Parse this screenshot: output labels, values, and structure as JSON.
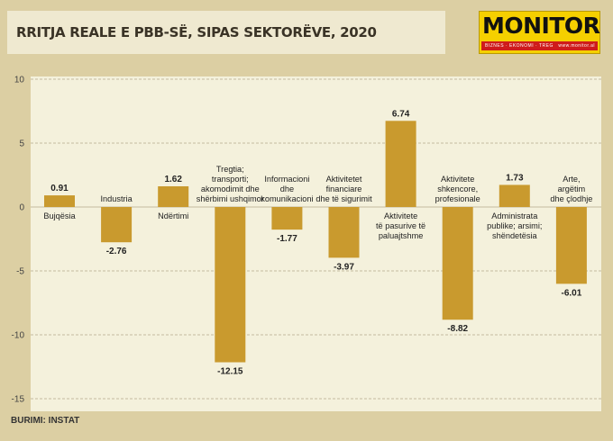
{
  "header": {
    "title": "RRITJA REALE E PBB-SË, SIPAS SEKTORËVE, 2020"
  },
  "logo": {
    "name": "MONITOR",
    "tagline": "BIZNES · EKONOMI · TREG",
    "url": "www.monitor.al"
  },
  "source": "BURIMI: INSTAT",
  "colors": {
    "bar": "#c99a2e",
    "background": "#dccfa3",
    "plot": "#f4f1dc",
    "logo": "#f5d000"
  },
  "chart_data": {
    "type": "bar",
    "title": "RRITJA REALE E PBB-SË, SIPAS SEKTORËVE, 2020",
    "categories": [
      [
        "Bujqësia"
      ],
      [
        "Industria"
      ],
      [
        "Ndërtimi"
      ],
      [
        "Tregtia;",
        "transporti;",
        "akomodimit dhe",
        "shërbimi ushqimor"
      ],
      [
        "Informacioni",
        "dhe",
        "komunikacioni"
      ],
      [
        "Aktivitetet",
        "financiare",
        "dhe të sigurimit"
      ],
      [
        "Aktivitete",
        "të pasurive të",
        "paluajtshme"
      ],
      [
        "Aktivitete",
        "shkencore,",
        "profesionale"
      ],
      [
        "Administrata",
        "publike; arsimi;",
        "shëndetësia"
      ],
      [
        "Arte,",
        "argëtim",
        "dhe çlodhje"
      ]
    ],
    "values": [
      0.91,
      -2.76,
      1.62,
      -12.15,
      -1.77,
      -3.97,
      6.74,
      -8.82,
      1.73,
      -6.01
    ],
    "value_labels": [
      "0.91",
      "-2.76",
      "1.62",
      "-12.15",
      "-1.77",
      "-3.97",
      "6.74",
      "-8.82",
      "1.73",
      "-6.01"
    ],
    "yticks": [
      "10",
      "5",
      "0",
      "-5",
      "-10",
      "-15"
    ],
    "ylim": [
      -15,
      10
    ],
    "grid": true,
    "legend": "none"
  }
}
